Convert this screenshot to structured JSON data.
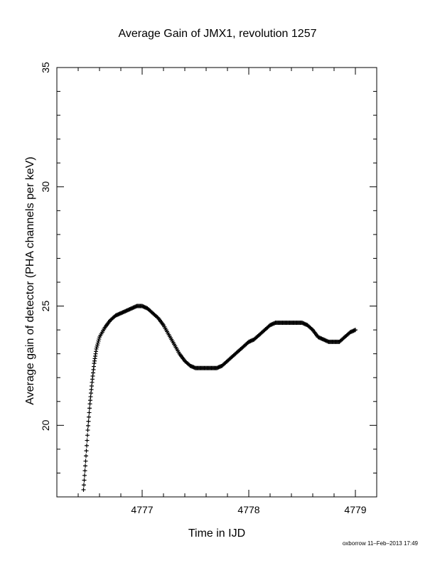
{
  "chart_data": {
    "type": "scatter",
    "title": "Average Gain of JMX1, revolution 1257",
    "xlabel": "Time in IJD",
    "ylabel": "Average gain of detector (PHA channels per keV)",
    "xlim": [
      4776.2,
      4779.2
    ],
    "ylim": [
      17,
      35
    ],
    "xticks_major": [
      4777,
      4778,
      4779
    ],
    "yticks_major": [
      20,
      25,
      30,
      35
    ],
    "xticks_minor_step": 0.2,
    "yticks_minor_step": 1,
    "grid": false,
    "legend": "none",
    "marker": "+",
    "color": "#000000",
    "series": [
      {
        "x": [
          4776.45,
          4776.47,
          4776.49,
          4776.51,
          4776.53,
          4776.55,
          4776.57,
          4776.6,
          4776.65,
          4776.7,
          4776.75,
          4776.8,
          4776.85,
          4776.9,
          4776.95,
          4777.0,
          4777.05,
          4777.1,
          4777.15,
          4777.2,
          4777.25,
          4777.3,
          4777.35,
          4777.4,
          4777.45,
          4777.5,
          4777.55,
          4777.6,
          4777.65,
          4777.7,
          4777.75,
          4777.8,
          4777.85,
          4777.9,
          4777.95,
          4778.0,
          4778.05,
          4778.1,
          4778.15,
          4778.2,
          4778.25,
          4778.3,
          4778.35,
          4778.4,
          4778.45,
          4778.5,
          4778.55,
          4778.6,
          4778.65,
          4778.7,
          4778.75,
          4778.8,
          4778.85,
          4778.9,
          4778.95,
          4779.0
        ],
        "y": [
          17.3,
          18.5,
          19.8,
          20.9,
          21.8,
          22.6,
          23.2,
          23.7,
          24.1,
          24.4,
          24.6,
          24.7,
          24.8,
          24.9,
          25.0,
          25.0,
          24.9,
          24.7,
          24.5,
          24.2,
          23.8,
          23.4,
          23.0,
          22.7,
          22.5,
          22.4,
          22.4,
          22.4,
          22.4,
          22.4,
          22.5,
          22.7,
          22.9,
          23.1,
          23.3,
          23.5,
          23.6,
          23.8,
          24.0,
          24.2,
          24.3,
          24.3,
          24.3,
          24.3,
          24.3,
          24.3,
          24.2,
          24.0,
          23.7,
          23.6,
          23.5,
          23.5,
          23.5,
          23.7,
          23.9,
          24.0
        ]
      }
    ]
  },
  "footer": {
    "text": "oxborrow 11–Feb–2013 17:49"
  }
}
